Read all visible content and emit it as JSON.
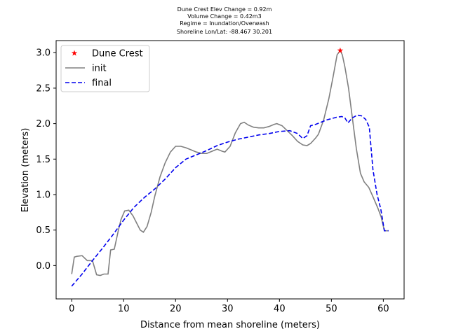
{
  "chart_data": {
    "type": "line",
    "title_lines": [
      "Dune Crest Elev Change = 0.92m",
      "Volume Change = 0.42m3",
      "Regime = Inundation/Overwash",
      "Shoreline Lon/Lat: -88.467 30.201"
    ],
    "xlabel": "Distance from mean shoreline (meters)",
    "ylabel": "Elevation (meters)",
    "xlim": [
      -3,
      64
    ],
    "ylim": [
      -0.47,
      3.17
    ],
    "xticks": [
      0,
      10,
      20,
      30,
      40,
      50,
      60
    ],
    "yticks": [
      0.0,
      0.5,
      1.0,
      1.5,
      2.0,
      2.5,
      3.0
    ],
    "xtick_labels": [
      "0",
      "10",
      "20",
      "30",
      "40",
      "50",
      "60"
    ],
    "ytick_labels": [
      "0.0",
      "0.5",
      "1.0",
      "1.5",
      "2.0",
      "2.5",
      "3.0"
    ],
    "legend_position": "upper-left",
    "series": [
      {
        "name": "init",
        "color": "#808080",
        "style": "solid",
        "points": [
          [
            0,
            -0.12
          ],
          [
            0.5,
            0.12
          ],
          [
            1,
            0.13
          ],
          [
            2,
            0.14
          ],
          [
            3,
            0.07
          ],
          [
            4,
            0.07
          ],
          [
            4.8,
            -0.13
          ],
          [
            5.5,
            -0.14
          ],
          [
            6.2,
            -0.12
          ],
          [
            7,
            -0.12
          ],
          [
            7.5,
            0.22
          ],
          [
            8.2,
            0.23
          ],
          [
            9,
            0.5
          ],
          [
            9.5,
            0.65
          ],
          [
            10.2,
            0.77
          ],
          [
            11,
            0.78
          ],
          [
            11.8,
            0.7
          ],
          [
            12.5,
            0.6
          ],
          [
            13.2,
            0.5
          ],
          [
            13.8,
            0.47
          ],
          [
            14.5,
            0.55
          ],
          [
            15.3,
            0.75
          ],
          [
            16,
            0.98
          ],
          [
            17,
            1.25
          ],
          [
            18,
            1.45
          ],
          [
            19,
            1.6
          ],
          [
            20,
            1.68
          ],
          [
            21,
            1.68
          ],
          [
            22,
            1.66
          ],
          [
            23,
            1.63
          ],
          [
            24,
            1.6
          ],
          [
            25,
            1.58
          ],
          [
            26,
            1.58
          ],
          [
            27,
            1.61
          ],
          [
            28,
            1.64
          ],
          [
            29,
            1.61
          ],
          [
            29.5,
            1.6
          ],
          [
            30.5,
            1.68
          ],
          [
            31.5,
            1.87
          ],
          [
            32.5,
            2.0
          ],
          [
            33.2,
            2.02
          ],
          [
            34,
            1.98
          ],
          [
            35,
            1.95
          ],
          [
            36,
            1.94
          ],
          [
            37,
            1.94
          ],
          [
            38,
            1.96
          ],
          [
            39,
            1.99
          ],
          [
            39.5,
            2.0
          ],
          [
            40.5,
            1.97
          ],
          [
            41.5,
            1.9
          ],
          [
            42.5,
            1.83
          ],
          [
            43.5,
            1.75
          ],
          [
            44.5,
            1.7
          ],
          [
            45.3,
            1.69
          ],
          [
            46,
            1.72
          ],
          [
            47,
            1.8
          ],
          [
            47.5,
            1.85
          ],
          [
            48.5,
            2.05
          ],
          [
            49.5,
            2.35
          ],
          [
            50.3,
            2.65
          ],
          [
            51.1,
            2.97
          ],
          [
            51.7,
            3.03
          ],
          [
            52.1,
            2.97
          ],
          [
            52.6,
            2.8
          ],
          [
            53.3,
            2.5
          ],
          [
            54,
            2.1
          ],
          [
            54.8,
            1.65
          ],
          [
            55.6,
            1.3
          ],
          [
            56.3,
            1.18
          ],
          [
            57.2,
            1.1
          ],
          [
            58,
            0.97
          ],
          [
            59,
            0.8
          ],
          [
            59.6,
            0.68
          ],
          [
            60.2,
            0.49
          ],
          [
            61,
            0.49
          ]
        ]
      },
      {
        "name": "final",
        "color": "#0000ee",
        "style": "dashed",
        "points": [
          [
            0,
            -0.29
          ],
          [
            2,
            -0.12
          ],
          [
            4,
            0.07
          ],
          [
            6,
            0.25
          ],
          [
            8,
            0.44
          ],
          [
            10,
            0.64
          ],
          [
            12,
            0.82
          ],
          [
            14,
            0.96
          ],
          [
            16,
            1.08
          ],
          [
            18,
            1.22
          ],
          [
            20,
            1.38
          ],
          [
            22,
            1.5
          ],
          [
            24,
            1.56
          ],
          [
            26,
            1.62
          ],
          [
            28,
            1.69
          ],
          [
            30,
            1.74
          ],
          [
            32,
            1.78
          ],
          [
            34,
            1.81
          ],
          [
            36,
            1.84
          ],
          [
            38,
            1.86
          ],
          [
            40,
            1.89
          ],
          [
            42,
            1.9
          ],
          [
            43.5,
            1.86
          ],
          [
            44.5,
            1.79
          ],
          [
            45.3,
            1.83
          ],
          [
            46,
            1.97
          ],
          [
            47,
            1.99
          ],
          [
            48,
            2.02
          ],
          [
            49,
            2.05
          ],
          [
            50,
            2.07
          ],
          [
            51,
            2.09
          ],
          [
            52,
            2.1
          ],
          [
            52.6,
            2.08
          ],
          [
            53.2,
            2.01
          ],
          [
            54,
            2.08
          ],
          [
            55,
            2.12
          ],
          [
            55.8,
            2.11
          ],
          [
            56.6,
            2.06
          ],
          [
            57.3,
            1.95
          ],
          [
            58,
            1.35
          ],
          [
            58.8,
            1.0
          ],
          [
            59.5,
            0.8
          ],
          [
            60.2,
            0.49
          ],
          [
            61,
            0.49
          ]
        ]
      }
    ],
    "markers": [
      {
        "name": "Dune Crest",
        "color": "#ff0000",
        "symbol": "star",
        "x": 51.7,
        "y": 3.03
      }
    ]
  }
}
